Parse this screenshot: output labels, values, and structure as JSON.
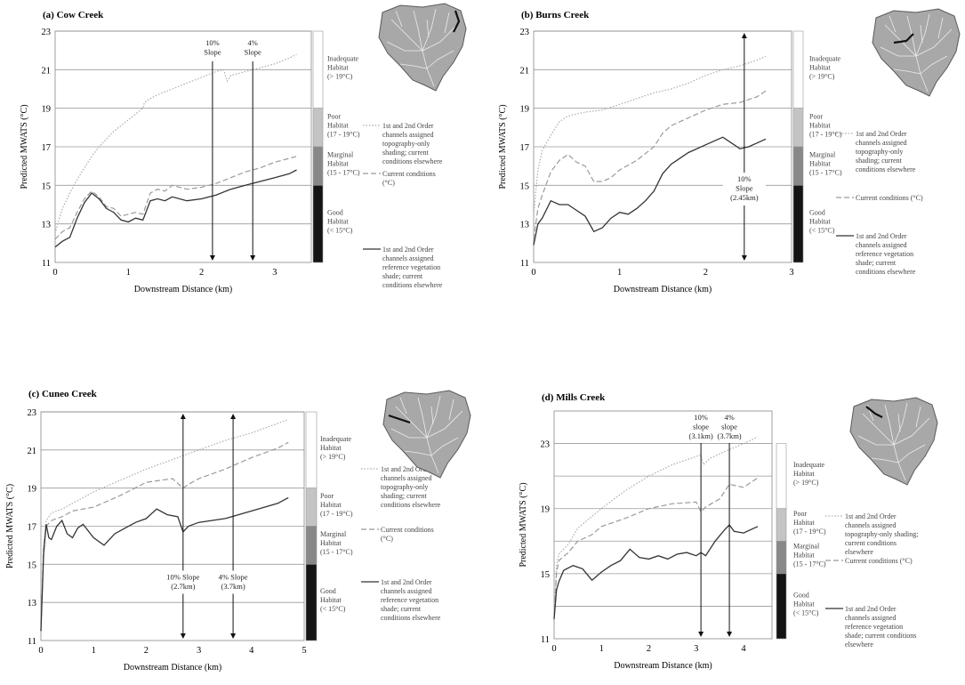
{
  "chart_data": [
    {
      "id": "a",
      "type": "line",
      "title": "(a) Cow Creek",
      "xlabel": "Downstream Distance (km)",
      "ylabel": "Predicted MWATS (°C)",
      "xlim": [
        0,
        3.5
      ],
      "ylim": [
        11,
        23
      ],
      "xticks": [
        0,
        1,
        2,
        3
      ],
      "yticks": [
        11,
        13,
        15,
        17,
        19,
        21,
        23
      ],
      "grid": true,
      "series": [
        {
          "key": "topo",
          "style": "dotted",
          "color": "#b0b0b0",
          "x": [
            0,
            0.05,
            0.1,
            0.2,
            0.3,
            0.4,
            0.5,
            0.6,
            0.7,
            0.8,
            0.9,
            1.0,
            1.1,
            1.2,
            1.22,
            1.3,
            1.4,
            1.6,
            1.8,
            2.0,
            2.2,
            2.3,
            2.35,
            2.4,
            2.6,
            2.8,
            3.0,
            3.2,
            3.3
          ],
          "y": [
            12.5,
            13.2,
            13.8,
            14.6,
            15.3,
            15.9,
            16.5,
            17.0,
            17.4,
            17.8,
            18.1,
            18.4,
            18.7,
            19.0,
            19.3,
            19.5,
            19.7,
            20.0,
            20.3,
            20.6,
            20.9,
            21.0,
            20.4,
            20.7,
            20.9,
            21.1,
            21.3,
            21.6,
            21.8
          ]
        },
        {
          "key": "current",
          "style": "dashed",
          "color": "#9a9a9a",
          "x": [
            0,
            0.1,
            0.2,
            0.3,
            0.4,
            0.5,
            0.6,
            0.7,
            0.8,
            0.9,
            1.0,
            1.1,
            1.2,
            1.3,
            1.4,
            1.5,
            1.6,
            1.8,
            2.0,
            2.2,
            2.4,
            2.6,
            2.8,
            3.0,
            3.2,
            3.3
          ],
          "y": [
            12.2,
            12.6,
            12.8,
            13.6,
            14.3,
            14.7,
            14.4,
            13.9,
            13.8,
            13.4,
            13.5,
            13.6,
            13.5,
            14.6,
            14.8,
            14.7,
            15.0,
            14.8,
            14.9,
            15.1,
            15.4,
            15.7,
            15.9,
            16.2,
            16.4,
            16.5
          ]
        },
        {
          "key": "reference",
          "style": "solid",
          "color": "#333333",
          "x": [
            0,
            0.1,
            0.2,
            0.3,
            0.4,
            0.5,
            0.6,
            0.7,
            0.8,
            0.9,
            1.0,
            1.1,
            1.2,
            1.3,
            1.4,
            1.5,
            1.6,
            1.8,
            2.0,
            2.2,
            2.4,
            2.6,
            2.8,
            3.0,
            3.2,
            3.3
          ],
          "y": [
            11.8,
            12.1,
            12.3,
            13.3,
            14.1,
            14.6,
            14.3,
            13.8,
            13.6,
            13.2,
            13.1,
            13.3,
            13.2,
            14.2,
            14.3,
            14.2,
            14.4,
            14.2,
            14.3,
            14.5,
            14.8,
            15.0,
            15.2,
            15.4,
            15.6,
            15.8
          ]
        }
      ],
      "annotations": [
        {
          "lines": [
            "10%",
            "Slope"
          ],
          "x": 2.15
        },
        {
          "lines": [
            "4%",
            "Slope"
          ],
          "x": 2.7
        }
      ]
    },
    {
      "id": "b",
      "type": "line",
      "title": "(b) Burns Creek",
      "xlabel": "Downstream Distance (km)",
      "ylabel": "Predicted MWATS (°C)",
      "xlim": [
        0,
        3
      ],
      "ylim": [
        11,
        23
      ],
      "xticks": [
        0,
        1,
        2,
        3
      ],
      "yticks": [
        11,
        13,
        15,
        17,
        19,
        21,
        23
      ],
      "grid": true,
      "series": [
        {
          "key": "topo",
          "style": "dotted",
          "color": "#b0b0b0",
          "x": [
            0,
            0.05,
            0.1,
            0.2,
            0.3,
            0.4,
            0.6,
            0.8,
            1.0,
            1.2,
            1.4,
            1.6,
            1.8,
            2.0,
            2.2,
            2.4,
            2.6,
            2.7
          ],
          "y": [
            13.5,
            15.8,
            16.8,
            17.6,
            18.3,
            18.6,
            18.8,
            18.9,
            19.2,
            19.5,
            19.8,
            20.0,
            20.3,
            20.7,
            21.0,
            21.2,
            21.5,
            21.7
          ]
        },
        {
          "key": "current",
          "style": "dashed",
          "color": "#9a9a9a",
          "x": [
            0,
            0.05,
            0.1,
            0.2,
            0.3,
            0.4,
            0.5,
            0.6,
            0.7,
            0.8,
            0.9,
            1.0,
            1.2,
            1.4,
            1.5,
            1.6,
            1.8,
            2.0,
            2.2,
            2.4,
            2.6,
            2.7
          ],
          "y": [
            12.2,
            13.8,
            14.5,
            15.7,
            16.3,
            16.6,
            16.2,
            16.0,
            15.2,
            15.2,
            15.4,
            15.8,
            16.3,
            17.0,
            17.7,
            18.1,
            18.5,
            18.9,
            19.2,
            19.3,
            19.6,
            19.9
          ]
        },
        {
          "key": "reference",
          "style": "solid",
          "color": "#333333",
          "x": [
            0,
            0.05,
            0.1,
            0.2,
            0.3,
            0.4,
            0.5,
            0.6,
            0.7,
            0.8,
            0.9,
            1.0,
            1.1,
            1.2,
            1.3,
            1.4,
            1.5,
            1.6,
            1.8,
            2.0,
            2.2,
            2.4,
            2.5,
            2.6,
            2.7
          ],
          "y": [
            11.9,
            13.0,
            13.3,
            14.2,
            14.0,
            14.0,
            13.7,
            13.4,
            12.6,
            12.8,
            13.3,
            13.6,
            13.5,
            13.8,
            14.2,
            14.7,
            15.6,
            16.1,
            16.7,
            17.1,
            17.5,
            16.9,
            17.0,
            17.2,
            17.4
          ]
        }
      ],
      "annotations": [
        {
          "lines": [
            "10%",
            "Slope",
            "(2.45km)"
          ],
          "x": 2.45
        }
      ]
    },
    {
      "id": "c",
      "type": "line",
      "title": "(c) Cuneo Creek",
      "xlabel": "Downstream Distance (km)",
      "ylabel": "Predicted MWATS (°C)",
      "xlim": [
        0,
        5
      ],
      "ylim": [
        11,
        23
      ],
      "xticks": [
        0,
        1,
        2,
        3,
        4,
        5
      ],
      "yticks": [
        11,
        13,
        15,
        17,
        19,
        21,
        23
      ],
      "grid": true,
      "series": [
        {
          "key": "topo",
          "style": "dotted",
          "color": "#b0b0b0",
          "x": [
            0,
            0.05,
            0.1,
            0.2,
            0.4,
            0.6,
            0.8,
            1.0,
            1.5,
            2.0,
            2.5,
            3.0,
            3.5,
            4.0,
            4.5,
            4.7
          ],
          "y": [
            11.5,
            16.0,
            17.3,
            17.7,
            17.9,
            18.2,
            18.5,
            18.8,
            19.4,
            20.0,
            20.5,
            21.0,
            21.5,
            21.9,
            22.4,
            22.6
          ]
        },
        {
          "key": "current",
          "style": "dashed",
          "color": "#9a9a9a",
          "x": [
            0,
            0.05,
            0.1,
            0.2,
            0.4,
            0.6,
            0.8,
            1.0,
            1.5,
            2.0,
            2.5,
            2.7,
            2.8,
            3.0,
            3.5,
            4.0,
            4.5,
            4.7
          ],
          "y": [
            11.5,
            15.8,
            17.0,
            17.3,
            17.5,
            17.8,
            17.9,
            18.0,
            18.6,
            19.3,
            19.5,
            19.0,
            19.2,
            19.5,
            20.0,
            20.6,
            21.1,
            21.4
          ]
        },
        {
          "key": "reference",
          "style": "solid",
          "color": "#333333",
          "x": [
            0,
            0.05,
            0.1,
            0.15,
            0.2,
            0.3,
            0.4,
            0.5,
            0.6,
            0.7,
            0.8,
            1.0,
            1.2,
            1.4,
            1.6,
            1.8,
            2.0,
            2.2,
            2.4,
            2.6,
            2.7,
            2.8,
            3.0,
            3.5,
            4.0,
            4.5,
            4.7
          ],
          "y": [
            11.5,
            15.5,
            17.1,
            16.4,
            16.3,
            17.0,
            17.3,
            16.6,
            16.4,
            16.9,
            17.1,
            16.4,
            16.0,
            16.6,
            16.9,
            17.2,
            17.4,
            17.9,
            17.6,
            17.5,
            16.7,
            17.0,
            17.2,
            17.4,
            17.8,
            18.2,
            18.5
          ]
        }
      ],
      "annotations": [
        {
          "lines": [
            "10%  Slope",
            "(2.7km)"
          ],
          "x": 2.7
        },
        {
          "lines": [
            "4%  Slope",
            "(3.7km)"
          ],
          "x": 3.65
        }
      ]
    },
    {
      "id": "d",
      "type": "line",
      "title": "(d) Mills Creek",
      "xlabel": "Downstream Distance (km)",
      "ylabel": "Predicted MWATS (°C)",
      "xlim": [
        0,
        4.6
      ],
      "ylim": [
        11,
        25
      ],
      "xticks": [
        0,
        1,
        2,
        3,
        4
      ],
      "yticks": [
        11,
        15,
        19,
        23
      ],
      "grid_lines": [
        13,
        15,
        17,
        19,
        21,
        23
      ],
      "grid": true,
      "series": [
        {
          "key": "topo",
          "style": "dotted",
          "color": "#b0b0b0",
          "x": [
            0,
            0.05,
            0.1,
            0.3,
            0.5,
            1.0,
            1.5,
            2.0,
            2.5,
            3.0,
            3.1,
            3.15,
            3.3,
            3.6,
            4.0,
            4.3
          ],
          "y": [
            12.5,
            15.5,
            16.2,
            16.8,
            17.8,
            19.0,
            20.1,
            21.0,
            21.7,
            22.2,
            22.3,
            21.7,
            22.1,
            22.5,
            23.0,
            23.4
          ]
        },
        {
          "key": "current",
          "style": "dashed",
          "color": "#9a9a9a",
          "x": [
            0,
            0.05,
            0.1,
            0.3,
            0.5,
            0.8,
            1.0,
            1.5,
            2.0,
            2.5,
            3.0,
            3.1,
            3.2,
            3.5,
            3.7,
            4.0,
            4.3
          ],
          "y": [
            12.3,
            15.0,
            15.8,
            16.3,
            17.0,
            17.4,
            17.9,
            18.4,
            19.0,
            19.3,
            19.4,
            18.8,
            19.1,
            19.6,
            20.5,
            20.3,
            20.9
          ]
        },
        {
          "key": "reference",
          "style": "solid",
          "color": "#333333",
          "x": [
            0,
            0.05,
            0.1,
            0.2,
            0.4,
            0.6,
            0.8,
            1.0,
            1.2,
            1.4,
            1.6,
            1.8,
            2.0,
            2.2,
            2.4,
            2.6,
            2.8,
            3.0,
            3.1,
            3.2,
            3.4,
            3.6,
            3.7,
            3.8,
            4.0,
            4.3
          ],
          "y": [
            12.2,
            14.0,
            14.5,
            15.2,
            15.5,
            15.3,
            14.6,
            15.1,
            15.5,
            15.8,
            16.5,
            16.0,
            15.9,
            16.1,
            15.9,
            16.2,
            16.3,
            16.1,
            16.3,
            16.1,
            17.0,
            17.7,
            18.0,
            17.6,
            17.5,
            17.9
          ]
        }
      ],
      "annotations": [
        {
          "lines": [
            "10%",
            "slope",
            "(3.1km)"
          ],
          "x": 3.1
        },
        {
          "lines": [
            "4%",
            "slope",
            "(3.7km)"
          ],
          "x": 3.7
        }
      ]
    }
  ],
  "habitat_bands": [
    {
      "label_lines": [
        "Inadequate",
        "Habitat",
        "(> 19°C)"
      ],
      "from": 19,
      "to": 23,
      "color": "#ffffff"
    },
    {
      "label_lines": [
        "Poor",
        "Habitat",
        "(17 - 19°C)"
      ],
      "from": 17,
      "to": 19,
      "color": "#c4c4c4"
    },
    {
      "label_lines": [
        "Marginal",
        "Habitat",
        "(15 - 17°C)"
      ],
      "from": 15,
      "to": 17,
      "color": "#888888"
    },
    {
      "label_lines": [
        "Good",
        "Habitat",
        "(< 15°C)"
      ],
      "from": 11,
      "to": 15,
      "color": "#141414"
    }
  ],
  "legends": {
    "a": [
      {
        "key": "topo",
        "lines": [
          "1st and 2nd Order",
          "channels assigned",
          "topography-only",
          "shading; current",
          "conditions elsewhere"
        ]
      },
      {
        "key": "current",
        "lines": [
          "Current conditions",
          "(°C)"
        ]
      },
      {
        "key": "reference",
        "lines": [
          "1st and 2nd Order",
          "channels assigned",
          "reference vegetation",
          "shade; current",
          "conditions elsewhere"
        ]
      }
    ],
    "b": [
      {
        "key": "topo",
        "lines": [
          "1st and 2nd Order",
          "channels assigned",
          "topography-only",
          "shading; current",
          "conditions elsewhere"
        ]
      },
      {
        "key": "current",
        "lines": [
          "Current conditions (°C)"
        ]
      },
      {
        "key": "reference",
        "lines": [
          "1st and 2nd Order",
          "channels assigned",
          "reference vegetation",
          "shade; current",
          "conditions elsewhere"
        ]
      }
    ],
    "c": [
      {
        "key": "topo",
        "lines": [
          "1st and 2nd Order",
          "channels assigned",
          "topography-only",
          "shading; current",
          "conditions elsewhere"
        ]
      },
      {
        "key": "current",
        "lines": [
          "Current conditions",
          "(°C)"
        ]
      },
      {
        "key": "reference",
        "lines": [
          "1st and 2nd Order",
          "channels assigned",
          "reference vegetation",
          "shade; current",
          "conditions elsewhere"
        ]
      }
    ],
    "d": [
      {
        "key": "topo",
        "lines": [
          "1st and 2nd Order",
          "channels assigned",
          "topography-only shading;",
          "current conditions",
          "elsewhere"
        ]
      },
      {
        "key": "current",
        "lines": [
          "Current conditions (°C)"
        ]
      },
      {
        "key": "reference",
        "lines": [
          "1st and 2nd Order",
          "channels assigned",
          "reference vegetation",
          "shade; current conditions",
          "elsewhere"
        ]
      }
    ]
  },
  "colors": {
    "grid": "#9a9a9a",
    "map_fill": "#a8a8a8",
    "map_stroke": "#5a5a5a",
    "stream": "#111111"
  }
}
